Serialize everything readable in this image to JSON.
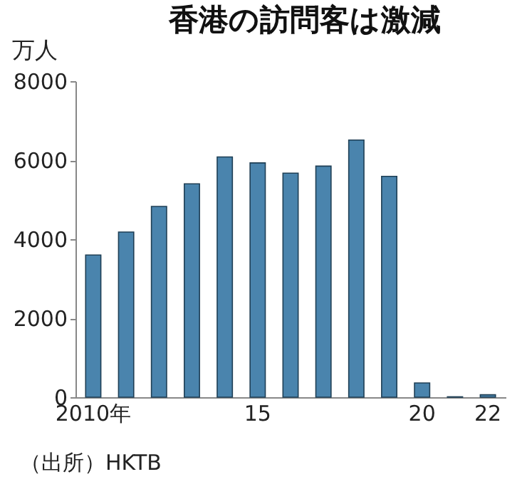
{
  "chart_data": {
    "type": "bar",
    "title": "香港の訪問客は激減",
    "ylabel": "万人",
    "categories": [
      "2010年",
      null,
      null,
      null,
      null,
      "15",
      null,
      null,
      null,
      null,
      "20",
      null,
      "22"
    ],
    "values": [
      3600,
      4180,
      4830,
      5400,
      6080,
      5930,
      5670,
      5850,
      6510,
      5590,
      360,
      10,
      60
    ],
    "color": "#4a84ad",
    "ylim": [
      0,
      8000
    ],
    "yticks": [
      0,
      2000,
      4000,
      6000,
      8000
    ],
    "annotations": [
      "（出所）HKTB"
    ]
  }
}
